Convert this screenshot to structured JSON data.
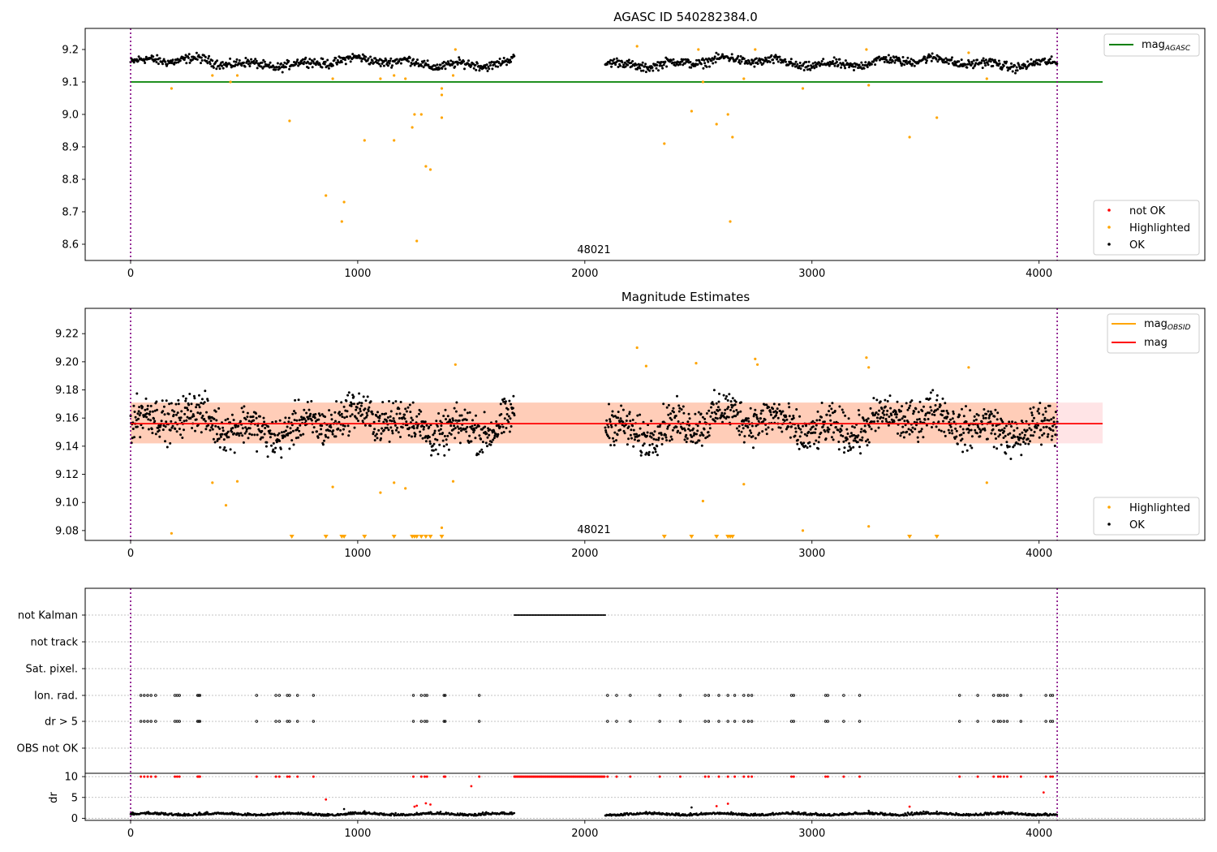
{
  "chart_data": [
    {
      "type": "scatter",
      "title": "AGASC ID 540282384.0",
      "annotation": "48021",
      "xlim": [
        -200,
        4730
      ],
      "ylim": [
        8.55,
        9.265
      ],
      "x_ticks": [
        0,
        1000,
        2000,
        3000,
        4000
      ],
      "y_ticks": [
        8.6,
        8.7,
        8.8,
        8.9,
        9.0,
        9.1,
        9.2
      ],
      "y_tick_labels": [
        "8.6",
        "8.7",
        "8.8",
        "8.9",
        "9.0",
        "9.1",
        "9.2"
      ],
      "x_tick_labels": [
        "0",
        "1000",
        "2000",
        "3000",
        "4000"
      ],
      "vlines": [
        0,
        4080
      ],
      "hline": {
        "y": 9.1,
        "x_range": [
          0,
          4280
        ],
        "color": "#008000"
      },
      "legend_line": {
        "label_main": "mag",
        "label_sub": "AGASC",
        "color": "#008000"
      },
      "legend_points": [
        {
          "label": "not OK",
          "color": "#ff0000"
        },
        {
          "label": "Highlighted",
          "color": "#ffa500"
        },
        {
          "label": "OK",
          "color": "#000000"
        }
      ],
      "ok_series": {
        "segments": [
          [
            0,
            1690
          ],
          [
            2090,
            4080
          ]
        ],
        "base": 9.16,
        "wave_amplitude": 0.015,
        "noise": 0.012,
        "step": 3,
        "color": "#000000"
      },
      "highlighted_points": [
        [
          180,
          9.08
        ],
        [
          360,
          9.12
        ],
        [
          440,
          9.1
        ],
        [
          470,
          9.12
        ],
        [
          700,
          8.98
        ],
        [
          860,
          8.75
        ],
        [
          890,
          9.11
        ],
        [
          930,
          8.67
        ],
        [
          940,
          8.73
        ],
        [
          1030,
          8.92
        ],
        [
          1100,
          9.11
        ],
        [
          1160,
          8.92
        ],
        [
          1160,
          9.12
        ],
        [
          1210,
          9.11
        ],
        [
          1240,
          8.96
        ],
        [
          1250,
          9.0
        ],
        [
          1260,
          8.61
        ],
        [
          1280,
          9.0
        ],
        [
          1300,
          8.84
        ],
        [
          1320,
          8.83
        ],
        [
          1370,
          9.08
        ],
        [
          1370,
          9.06
        ],
        [
          1370,
          8.99
        ],
        [
          1420,
          9.12
        ],
        [
          1430,
          9.2
        ],
        [
          2230,
          9.21
        ],
        [
          2350,
          8.91
        ],
        [
          2470,
          9.01
        ],
        [
          2500,
          9.2
        ],
        [
          2520,
          9.1
        ],
        [
          2580,
          8.97
        ],
        [
          2630,
          9.0
        ],
        [
          2640,
          8.67
        ],
        [
          2650,
          8.93
        ],
        [
          2700,
          9.11
        ],
        [
          2750,
          9.2
        ],
        [
          2960,
          9.08
        ],
        [
          3240,
          9.2
        ],
        [
          3250,
          9.09
        ],
        [
          3430,
          8.93
        ],
        [
          3550,
          8.99
        ],
        [
          3690,
          9.19
        ],
        [
          3770,
          9.11
        ]
      ]
    },
    {
      "type": "scatter",
      "title": "Magnitude Estimates",
      "annotation": "48021",
      "xlim": [
        -200,
        4730
      ],
      "ylim": [
        9.073,
        9.238
      ],
      "x_ticks": [
        0,
        1000,
        2000,
        3000,
        4000
      ],
      "y_ticks": [
        9.08,
        9.1,
        9.12,
        9.14,
        9.16,
        9.18,
        9.2,
        9.22
      ],
      "y_tick_labels": [
        "9.08",
        "9.10",
        "9.12",
        "9.14",
        "9.16",
        "9.18",
        "9.20",
        "9.22"
      ],
      "x_tick_labels": [
        "0",
        "1000",
        "2000",
        "3000",
        "4000"
      ],
      "vlines": [
        0,
        4080
      ],
      "mag_line": {
        "y": 9.156,
        "x_range": [
          0,
          4280
        ],
        "color": "#ff0000"
      },
      "band": {
        "y_range": [
          9.142,
          9.171
        ],
        "x_range": [
          0,
          4280
        ]
      },
      "legend_lines": [
        {
          "label_main": "mag",
          "label_sub": "OBSID",
          "color": "#ffa500"
        },
        {
          "label_main": "mag",
          "label_sub": "",
          "color": "#ff0000"
        }
      ],
      "legend_points": [
        {
          "label": "Highlighted",
          "color": "#ffa500"
        },
        {
          "label": "OK",
          "color": "#000000"
        }
      ],
      "ok_series": {
        "segments": [
          [
            0,
            1690
          ],
          [
            2090,
            4080
          ]
        ],
        "base": 9.156,
        "wave_amplitude": 0.01,
        "noise": 0.012,
        "step": 2,
        "color": "#000000"
      },
      "highlighted_points": [
        [
          180,
          9.078
        ],
        [
          360,
          9.114
        ],
        [
          420,
          9.098
        ],
        [
          470,
          9.115
        ],
        [
          890,
          9.111
        ],
        [
          1100,
          9.107
        ],
        [
          1160,
          9.114
        ],
        [
          1210,
          9.11
        ],
        [
          1370,
          9.082
        ],
        [
          1420,
          9.115
        ],
        [
          1430,
          9.198
        ],
        [
          2230,
          9.21
        ],
        [
          2270,
          9.197
        ],
        [
          2490,
          9.199
        ],
        [
          2520,
          9.101
        ],
        [
          2700,
          9.113
        ],
        [
          2750,
          9.202
        ],
        [
          2760,
          9.198
        ],
        [
          2960,
          9.08
        ],
        [
          3240,
          9.203
        ],
        [
          3250,
          9.083
        ],
        [
          3250,
          9.196
        ],
        [
          3690,
          9.196
        ],
        [
          3770,
          9.114
        ]
      ],
      "below_markers": [
        710,
        860,
        930,
        940,
        1030,
        1160,
        1240,
        1250,
        1260,
        1280,
        1300,
        1320,
        1370,
        2350,
        2470,
        2580,
        2630,
        2640,
        2650,
        3430,
        3550
      ]
    },
    {
      "type": "scatter",
      "title": "",
      "xlim": [
        -200,
        4730
      ],
      "x_ticks": [
        0,
        1000,
        2000,
        3000,
        4000
      ],
      "x_tick_labels": [
        "0",
        "1000",
        "2000",
        "3000",
        "4000"
      ],
      "vlines": [
        0,
        4080
      ],
      "flag_rows": [
        "not Kalman",
        "not track",
        "Sat. pixel.",
        "Ion. rad.",
        "dr > 5",
        "OBS not OK"
      ],
      "not_kalman_range": [
        1690,
        2090
      ],
      "flag_events": [
        45,
        60,
        75,
        90,
        110,
        195,
        205,
        215,
        295,
        300,
        305,
        555,
        640,
        655,
        690,
        700,
        735,
        805,
        1245,
        1280,
        1295,
        1305,
        1380,
        1385,
        1535,
        2100,
        2140,
        2200,
        2330,
        2420,
        2530,
        2545,
        2590,
        2630,
        2660,
        2700,
        2720,
        2735,
        2910,
        2920,
        3060,
        3070,
        3140,
        3210,
        3650,
        3730,
        3800,
        3820,
        3830,
        3845,
        3860,
        3920,
        4030,
        4050,
        4060
      ],
      "dr": {
        "ylim": [
          -0.5,
          10.8
        ],
        "y_ticks": [
          0,
          5,
          10
        ],
        "y_tick_labels": [
          "0",
          "5",
          "10"
        ],
        "ylabel": "dr",
        "baseline_segments": [
          [
            0,
            1690
          ],
          [
            2090,
            4080
          ]
        ],
        "red_points": [
          [
            860,
            4.5
          ],
          [
            1250,
            2.8
          ],
          [
            1260,
            3.0
          ],
          [
            1300,
            3.6
          ],
          [
            1320,
            3.3
          ],
          [
            1500,
            7.7
          ],
          [
            2630,
            3.5
          ],
          [
            2580,
            2.9
          ],
          [
            3430,
            2.8
          ],
          [
            4020,
            6.2
          ]
        ],
        "black_outliers": [
          [
            940,
            2.2
          ],
          [
            1030,
            1.7
          ],
          [
            2470,
            2.6
          ],
          [
            3250,
            1.8
          ],
          [
            3550,
            1.6
          ]
        ]
      }
    }
  ]
}
